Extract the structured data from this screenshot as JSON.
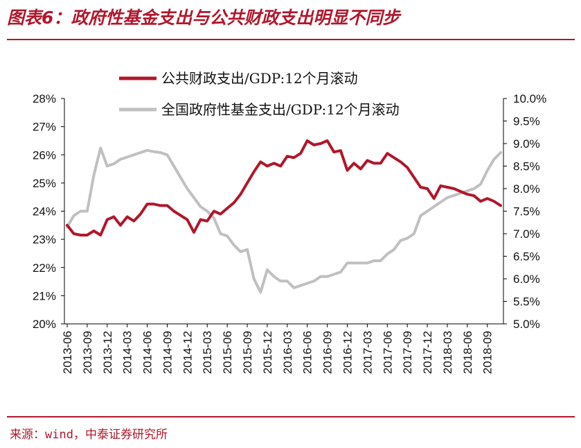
{
  "header": {
    "title": "图表6：政府性基金支出与公共财政支出明显不同步"
  },
  "footer": {
    "source": "来源：wind，中泰证券研究所"
  },
  "chart_data": {
    "type": "line",
    "legend_position": "top-left",
    "grid": false,
    "x": [
      "2013-06",
      "2013-07",
      "2013-08",
      "2013-09",
      "2013-10",
      "2013-11",
      "2013-12",
      "2014-01",
      "2014-02",
      "2014-03",
      "2014-04",
      "2014-05",
      "2014-06",
      "2014-07",
      "2014-08",
      "2014-09",
      "2014-10",
      "2014-11",
      "2014-12",
      "2015-01",
      "2015-02",
      "2015-03",
      "2015-04",
      "2015-05",
      "2015-06",
      "2015-07",
      "2015-08",
      "2015-09",
      "2015-10",
      "2015-11",
      "2015-12",
      "2016-01",
      "2016-02",
      "2016-03",
      "2016-04",
      "2016-05",
      "2016-06",
      "2016-07",
      "2016-08",
      "2016-09",
      "2016-10",
      "2016-11",
      "2016-12",
      "2017-01",
      "2017-02",
      "2017-03",
      "2017-04",
      "2017-05",
      "2017-06",
      "2017-07",
      "2017-08",
      "2017-09",
      "2017-10",
      "2017-11",
      "2017-12",
      "2018-01",
      "2018-02",
      "2018-03",
      "2018-04",
      "2018-05",
      "2018-06",
      "2018-07",
      "2018-08",
      "2018-09",
      "2018-10",
      "2018-11"
    ],
    "x_tick_labels": [
      "2013-06",
      "2013-09",
      "2013-12",
      "2014-03",
      "2014-06",
      "2014-09",
      "2014-12",
      "2015-03",
      "2015-06",
      "2015-09",
      "2015-12",
      "2016-03",
      "2016-06",
      "2016-09",
      "2016-12",
      "2017-03",
      "2017-06",
      "2017-09",
      "2017-12",
      "2018-03",
      "2018-06",
      "2018-09"
    ],
    "y_left": {
      "range": [
        20,
        28
      ],
      "ticks": [
        "20%",
        "21%",
        "22%",
        "23%",
        "24%",
        "25%",
        "26%",
        "27%",
        "28%"
      ]
    },
    "y_right": {
      "range": [
        5.0,
        10.0
      ],
      "ticks": [
        "5.0%",
        "5.5%",
        "6.0%",
        "6.5%",
        "7.0%",
        "7.5%",
        "8.0%",
        "8.5%",
        "9.0%",
        "9.5%",
        "10.0%"
      ]
    },
    "series": [
      {
        "name": "公共财政支出/GDP:12个月滚动",
        "axis": "left",
        "color": "#b0172b",
        "values": [
          23.5,
          23.2,
          23.15,
          23.15,
          23.3,
          23.15,
          23.7,
          23.8,
          23.5,
          23.8,
          23.65,
          23.9,
          24.25,
          24.25,
          24.2,
          24.2,
          24.0,
          23.85,
          23.7,
          23.25,
          23.7,
          23.65,
          24.0,
          23.9,
          24.1,
          24.3,
          24.6,
          25.0,
          25.4,
          25.75,
          25.6,
          25.7,
          25.6,
          25.95,
          25.9,
          26.05,
          26.5,
          26.35,
          26.4,
          26.5,
          26.1,
          26.15,
          25.45,
          25.7,
          25.5,
          25.8,
          25.7,
          25.7,
          26.05,
          25.9,
          25.75,
          25.55,
          25.2,
          24.85,
          24.8,
          24.45,
          24.9,
          24.85,
          24.8,
          24.7,
          24.6,
          24.55,
          24.35,
          24.45,
          24.35,
          24.2
        ]
      },
      {
        "name": "全国政府性基金支出/GDP:12个月滚动",
        "axis": "right",
        "color": "#c0c0c0",
        "values": [
          7.15,
          7.4,
          7.5,
          7.5,
          8.3,
          8.9,
          8.5,
          8.55,
          8.65,
          8.7,
          8.75,
          8.8,
          8.85,
          8.82,
          8.8,
          8.75,
          8.5,
          8.25,
          8.0,
          7.8,
          7.6,
          7.5,
          7.35,
          7.0,
          6.95,
          6.75,
          6.6,
          6.65,
          6.0,
          5.7,
          6.2,
          6.05,
          5.95,
          5.95,
          5.8,
          5.85,
          5.9,
          5.95,
          6.05,
          6.05,
          6.1,
          6.15,
          6.35,
          6.35,
          6.35,
          6.35,
          6.4,
          6.4,
          6.55,
          6.65,
          6.85,
          6.9,
          7.0,
          7.4,
          7.5,
          7.6,
          7.7,
          7.8,
          7.85,
          7.9,
          7.95,
          8.0,
          8.1,
          8.4,
          8.65,
          8.8
        ]
      }
    ]
  }
}
